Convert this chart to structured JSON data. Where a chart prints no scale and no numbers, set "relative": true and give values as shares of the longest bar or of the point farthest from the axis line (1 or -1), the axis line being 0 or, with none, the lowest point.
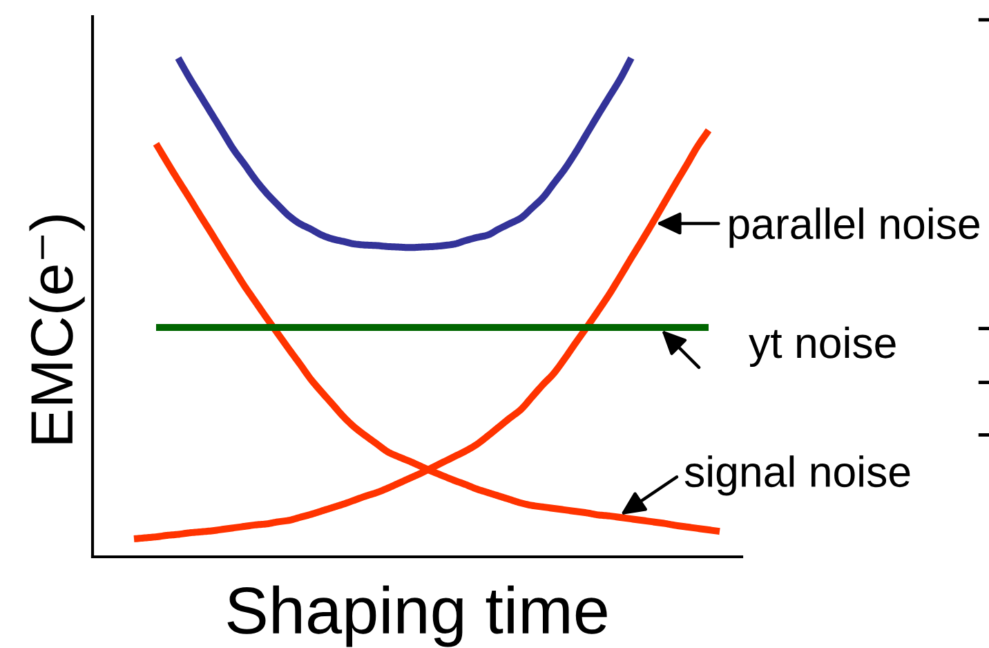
{
  "chart_data": {
    "type": "line",
    "relative": true,
    "xlabel": "Shaping time",
    "ylabel": "EMC(e⁻)",
    "categories": [
      null,
      null,
      null,
      null,
      null,
      null,
      null,
      null,
      null,
      null,
      null,
      null,
      null,
      null,
      null,
      null,
      null,
      null,
      null,
      null,
      null,
      null,
      null,
      null,
      null,
      null,
      null,
      null,
      null,
      null,
      null,
      null,
      null,
      null,
      null,
      null,
      null,
      null,
      null,
      null,
      null,
      null,
      null,
      null,
      null,
      null,
      null,
      null,
      null,
      null,
      null,
      null,
      null,
      null
    ],
    "series": [
      {
        "color": "#333399",
        "values": [
          null,
          null,
          null,
          null,
          1.0,
          0.961,
          0.925,
          0.889,
          0.853,
          0.817,
          0.787,
          0.756,
          0.729,
          0.706,
          0.684,
          0.668,
          0.657,
          0.645,
          0.637,
          0.632,
          0.627,
          0.625,
          0.624,
          0.622,
          0.621,
          0.62,
          0.621,
          0.622,
          0.624,
          0.627,
          0.634,
          0.64,
          0.645,
          0.657,
          0.668,
          0.679,
          0.699,
          0.72,
          0.749,
          0.778,
          0.812,
          0.849,
          0.886,
          0.922,
          0.958,
          1.0,
          null,
          null,
          null,
          null,
          null,
          null,
          null,
          null
        ]
      },
      {
        "name": "signal noise",
        "color": "#ff3300",
        "values": [
          null,
          null,
          0.828,
          0.791,
          0.755,
          0.72,
          0.684,
          0.649,
          0.613,
          0.578,
          0.543,
          0.511,
          0.479,
          0.448,
          0.417,
          0.387,
          0.356,
          0.33,
          0.305,
          0.28,
          0.259,
          0.242,
          0.226,
          0.21,
          0.2,
          0.191,
          0.181,
          0.171,
          0.162,
          0.153,
          0.145,
          0.136,
          0.129,
          0.122,
          0.115,
          0.108,
          0.103,
          0.1,
          0.097,
          0.094,
          0.091,
          0.088,
          0.084,
          0.082,
          0.079,
          0.076,
          0.073,
          0.07,
          0.067,
          0.063,
          0.06,
          0.057,
          0.054,
          0.051
        ]
      },
      {
        "name": "parallel noise",
        "color": "#ff3300",
        "values": [
          0.036,
          0.038,
          0.04,
          0.043,
          0.045,
          0.048,
          0.05,
          0.052,
          0.055,
          0.058,
          0.061,
          0.064,
          0.066,
          0.07,
          0.073,
          0.079,
          0.085,
          0.092,
          0.099,
          0.106,
          0.114,
          0.122,
          0.129,
          0.138,
          0.148,
          0.158,
          0.168,
          0.179,
          0.19,
          0.201,
          0.212,
          0.225,
          0.242,
          0.26,
          0.278,
          0.295,
          0.32,
          0.345,
          0.368,
          0.398,
          0.43,
          0.461,
          0.493,
          0.526,
          0.562,
          0.599,
          0.635,
          0.672,
          0.71,
          0.748,
          0.785,
          0.823,
          0.855,
          null
        ]
      },
      {
        "name": "yt noise",
        "color": "#006600",
        "values": [
          null,
          null,
          0.46,
          0.46,
          0.46,
          0.46,
          0.46,
          0.46,
          0.46,
          0.46,
          0.46,
          0.46,
          0.46,
          0.46,
          0.46,
          0.46,
          0.46,
          0.46,
          0.46,
          0.46,
          0.46,
          0.46,
          0.46,
          0.46,
          0.46,
          0.46,
          0.46,
          0.46,
          0.46,
          0.46,
          0.46,
          0.46,
          0.46,
          0.46,
          0.46,
          0.46,
          0.46,
          0.46,
          0.46,
          0.46,
          0.46,
          0.46,
          0.46,
          0.46,
          0.46,
          0.46,
          0.46,
          0.46,
          0.46,
          0.46,
          0.46,
          0.46,
          0.46,
          null
        ]
      }
    ],
    "annotations": [
      "-",
      "-",
      "-",
      "-"
    ]
  }
}
